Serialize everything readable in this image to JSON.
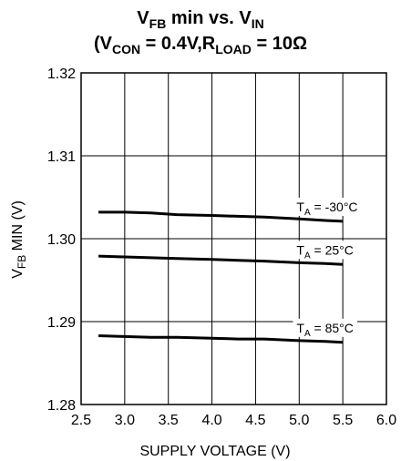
{
  "title": {
    "line1": {
      "a": "V",
      "a_sub": "FB",
      "b": " min vs. V",
      "b_sub": "IN"
    },
    "line2": {
      "open": "(V",
      "s1": "CON",
      "mid": " = 0.4V,R",
      "s2": "LOAD",
      "end": " = 10Ω"
    }
  },
  "chart_data": {
    "type": "line",
    "xlabel": "SUPPLY VOLTAGE (V)",
    "ylabel": {
      "main": "V",
      "sub": "FB",
      "rest": " MIN (V)"
    },
    "xlim": [
      2.5,
      6.0
    ],
    "ylim": [
      1.28,
      1.32
    ],
    "x_ticks": [
      "2.5",
      "3.0",
      "3.5",
      "4.0",
      "4.5",
      "5.0",
      "5.5",
      "6.0"
    ],
    "y_ticks": [
      "1.28",
      "1.29",
      "1.30",
      "1.31",
      "1.32"
    ],
    "grid": true,
    "x": [
      2.7,
      3.0,
      3.3,
      3.6,
      4.0,
      4.3,
      4.6,
      5.0,
      5.3,
      5.5
    ],
    "series": [
      {
        "label_main": "T",
        "label_sub": "A",
        "label_rest": " = -30°C",
        "values": [
          1.3032,
          1.3032,
          1.3031,
          1.3029,
          1.3028,
          1.3027,
          1.3026,
          1.3024,
          1.3022,
          1.3021
        ]
      },
      {
        "label_main": "T",
        "label_sub": "A",
        "label_rest": " = 25°C",
        "values": [
          1.2979,
          1.2978,
          1.2977,
          1.2976,
          1.2975,
          1.2974,
          1.2973,
          1.2971,
          1.297,
          1.2969
        ]
      },
      {
        "label_main": "T",
        "label_sub": "A",
        "label_rest": " = 85°C",
        "values": [
          1.2883,
          1.2882,
          1.2881,
          1.2881,
          1.288,
          1.2879,
          1.2879,
          1.2877,
          1.2876,
          1.2875
        ]
      }
    ]
  }
}
